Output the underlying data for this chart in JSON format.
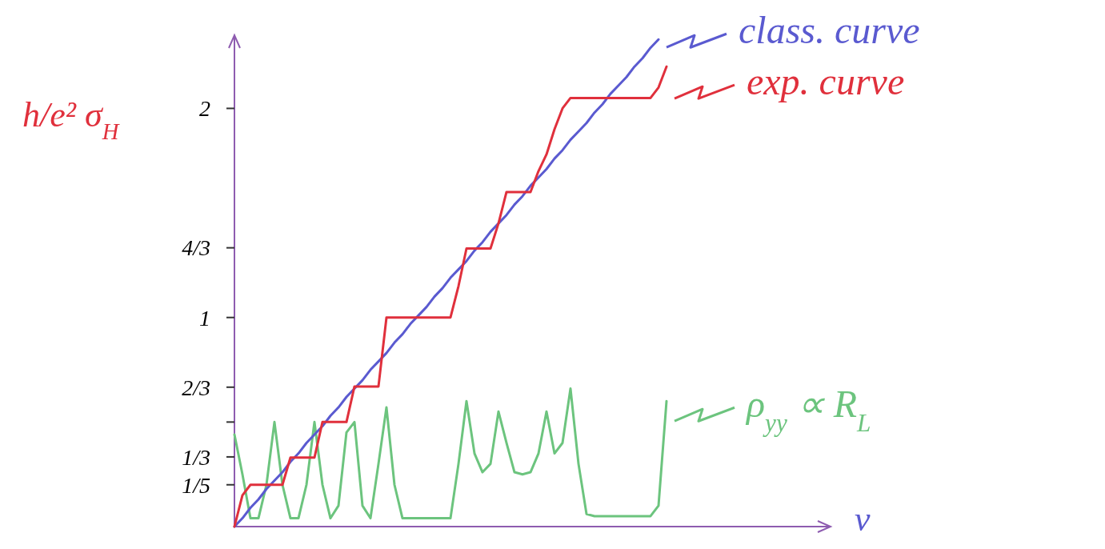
{
  "chart_data": {
    "type": "line",
    "xlabel": "ν",
    "ylabel": "h/e² σ$_{H}$",
    "categories": [
      null,
      null,
      null,
      null,
      null,
      null,
      null,
      null,
      null,
      null,
      null,
      null,
      null,
      null,
      null,
      null,
      null,
      null,
      null,
      null,
      null,
      null,
      null,
      null,
      null,
      null,
      null,
      null,
      null,
      null,
      null,
      null,
      null,
      null,
      null,
      null,
      null,
      null,
      null,
      null,
      null,
      null,
      null,
      null,
      null,
      null,
      null,
      null,
      null,
      null,
      null,
      null,
      null,
      null,
      null,
      null,
      null,
      null,
      null,
      null,
      null,
      null,
      null,
      null,
      null,
      null,
      null,
      null,
      null,
      null,
      null,
      null,
      null,
      null,
      null
    ],
    "ylim": [
      0,
      2.35
    ],
    "yticks": [
      {
        "value": 0.2,
        "label": "1/5"
      },
      {
        "value": 0.3333,
        "label": "1/3"
      },
      {
        "value": 0.5,
        "label": null
      },
      {
        "value": 0.6667,
        "label": "2/3"
      },
      1,
      {
        "value": 1.3333,
        "label": "4/3"
      },
      2
    ],
    "grid": false,
    "legend": "right",
    "tick_labels": "y",
    "series": [
      {
        "name": "ρ$_{yy}$ ∝ R$_{L}$",
        "color": "#6cc47e",
        "values": [
          0.44,
          0.25,
          0.04,
          0.04,
          0.2,
          0.5,
          0.2,
          0.04,
          0.04,
          0.2,
          0.5,
          0.2,
          0.04,
          0.1,
          0.45,
          0.5,
          0.1,
          0.04,
          0.3,
          0.57,
          0.2,
          0.04,
          0.04,
          0.04,
          0.04,
          0.04,
          0.04,
          0.04,
          0.3,
          0.6,
          0.35,
          0.26,
          0.3,
          0.55,
          0.4,
          0.26,
          0.25,
          0.26,
          0.35,
          0.55,
          0.35,
          0.4,
          0.66,
          0.3,
          0.06,
          0.05,
          0.05,
          0.05,
          0.05,
          0.05,
          0.05,
          0.05,
          0.05,
          0.1,
          0.6,
          null,
          null,
          null,
          null,
          null,
          null,
          null,
          null,
          null,
          null,
          null,
          null,
          null,
          null,
          null,
          null,
          null,
          null,
          null,
          null
        ]
      },
      {
        "name": "class. curve",
        "color": "#5a5ad0",
        "values": [
          0,
          0.04,
          0.09,
          0.13,
          0.18,
          0.22,
          0.26,
          0.31,
          0.35,
          0.4,
          0.44,
          0.48,
          0.53,
          0.57,
          0.62,
          0.66,
          0.7,
          0.75,
          0.79,
          0.83,
          0.88,
          0.92,
          0.97,
          1.01,
          1.05,
          1.1,
          1.14,
          1.19,
          1.23,
          1.27,
          1.32,
          1.36,
          1.41,
          1.45,
          1.49,
          1.54,
          1.58,
          1.63,
          1.67,
          1.71,
          1.76,
          1.8,
          1.85,
          1.89,
          1.93,
          1.98,
          2.02,
          2.07,
          2.11,
          2.15,
          2.2,
          2.24,
          2.29,
          2.33,
          null,
          null,
          null,
          null,
          null,
          null,
          null,
          null,
          null,
          null,
          null,
          null,
          null,
          null,
          null,
          null,
          null,
          null,
          null,
          null,
          null
        ]
      },
      {
        "name": "exp. curve",
        "color": "#e0303c",
        "values": [
          0,
          0.15,
          0.2,
          0.2,
          0.2,
          0.2,
          0.2,
          0.33,
          0.33,
          0.33,
          0.33,
          0.5,
          0.5,
          0.5,
          0.5,
          0.67,
          0.67,
          0.67,
          0.67,
          1,
          1,
          1,
          1,
          1,
          1,
          1,
          1,
          1,
          1.15,
          1.33,
          1.33,
          1.33,
          1.33,
          1.45,
          1.6,
          1.6,
          1.6,
          1.6,
          1.7,
          1.78,
          1.9,
          2,
          2.05,
          2.05,
          2.05,
          2.05,
          2.05,
          2.05,
          2.05,
          2.05,
          2.05,
          2.05,
          2.05,
          2.1,
          2.2,
          null,
          null,
          null,
          null,
          null,
          null,
          null,
          null,
          null,
          null,
          null,
          null,
          null,
          null,
          null,
          null,
          null,
          null,
          null,
          null
        ]
      }
    ]
  }
}
